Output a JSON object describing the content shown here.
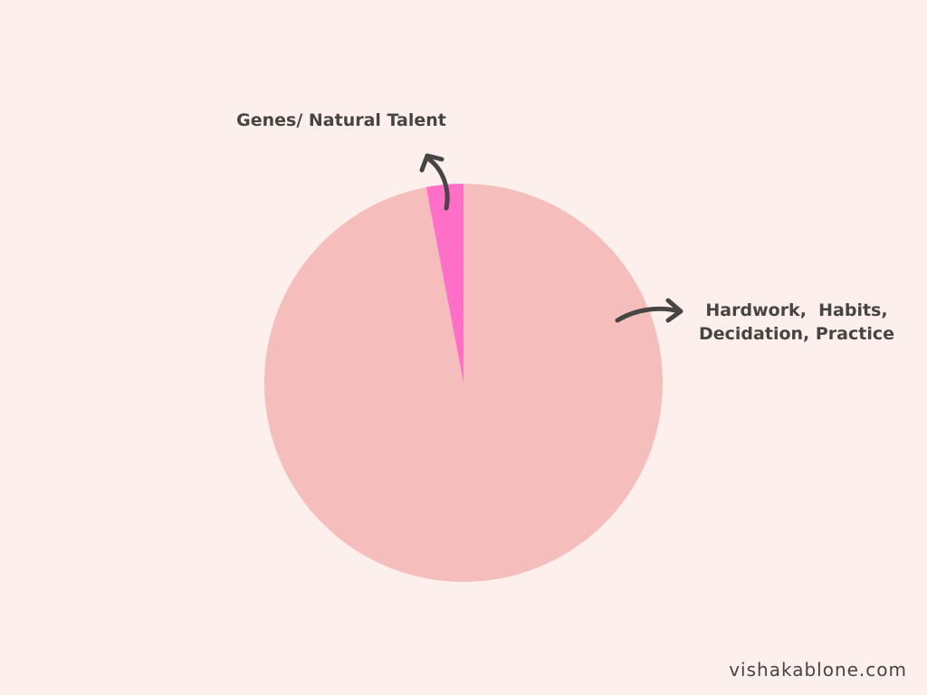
{
  "chart_data": {
    "type": "pie",
    "categories": [
      "Hardwork,  Habits, Decidation, Practice",
      "Genes/ Natural Talent"
    ],
    "values": [
      97,
      3
    ],
    "colors": [
      "#f5bdbb",
      "#ff6ec7"
    ],
    "source": "vishakablone.com"
  }
}
